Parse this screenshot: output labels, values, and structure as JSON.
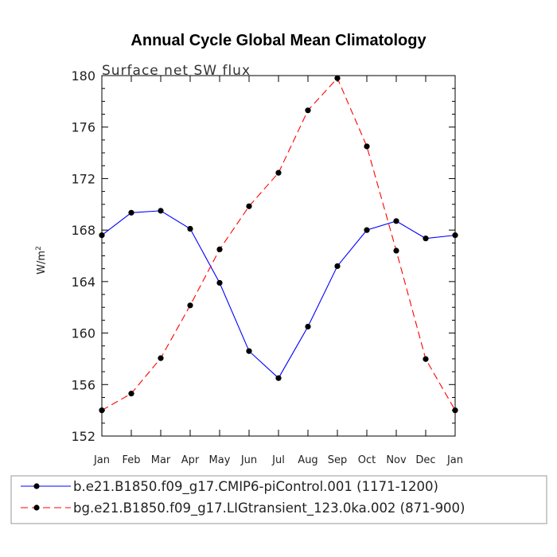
{
  "chart_data": {
    "type": "line",
    "title": "Annual Cycle Global Mean Climatology",
    "subtitle": "Surface net SW flux",
    "xlabel": "",
    "ylabel": "W/m",
    "ylabel_superscript": "2",
    "categories": [
      "Jan",
      "Feb",
      "Mar",
      "Apr",
      "May",
      "Jun",
      "Jul",
      "Aug",
      "Sep",
      "Oct",
      "Nov",
      "Dec",
      "Jan"
    ],
    "ylim": [
      152,
      180
    ],
    "yticks": [
      152,
      156,
      160,
      164,
      168,
      172,
      176,
      180
    ],
    "grid": false,
    "legend_position": "bottom",
    "series": [
      {
        "name": "b.e21.B1850.f09_g17.CMIP6-piControl.001 (1171-1200)",
        "color": "#0000ff",
        "dash": "solid",
        "values": [
          167.6,
          169.35,
          169.5,
          168.1,
          163.9,
          158.6,
          156.5,
          160.5,
          165.2,
          168.0,
          168.7,
          167.35,
          167.6
        ]
      },
      {
        "name": "bg.e21.B1850.f09_g17.LIGtransient_123.0ka.002 (871-900)",
        "color": "#ff0000",
        "dash": "dashed",
        "values": [
          154.0,
          155.3,
          158.05,
          162.15,
          166.5,
          169.85,
          172.45,
          177.3,
          179.8,
          174.5,
          166.4,
          157.98,
          154.0
        ]
      }
    ]
  }
}
